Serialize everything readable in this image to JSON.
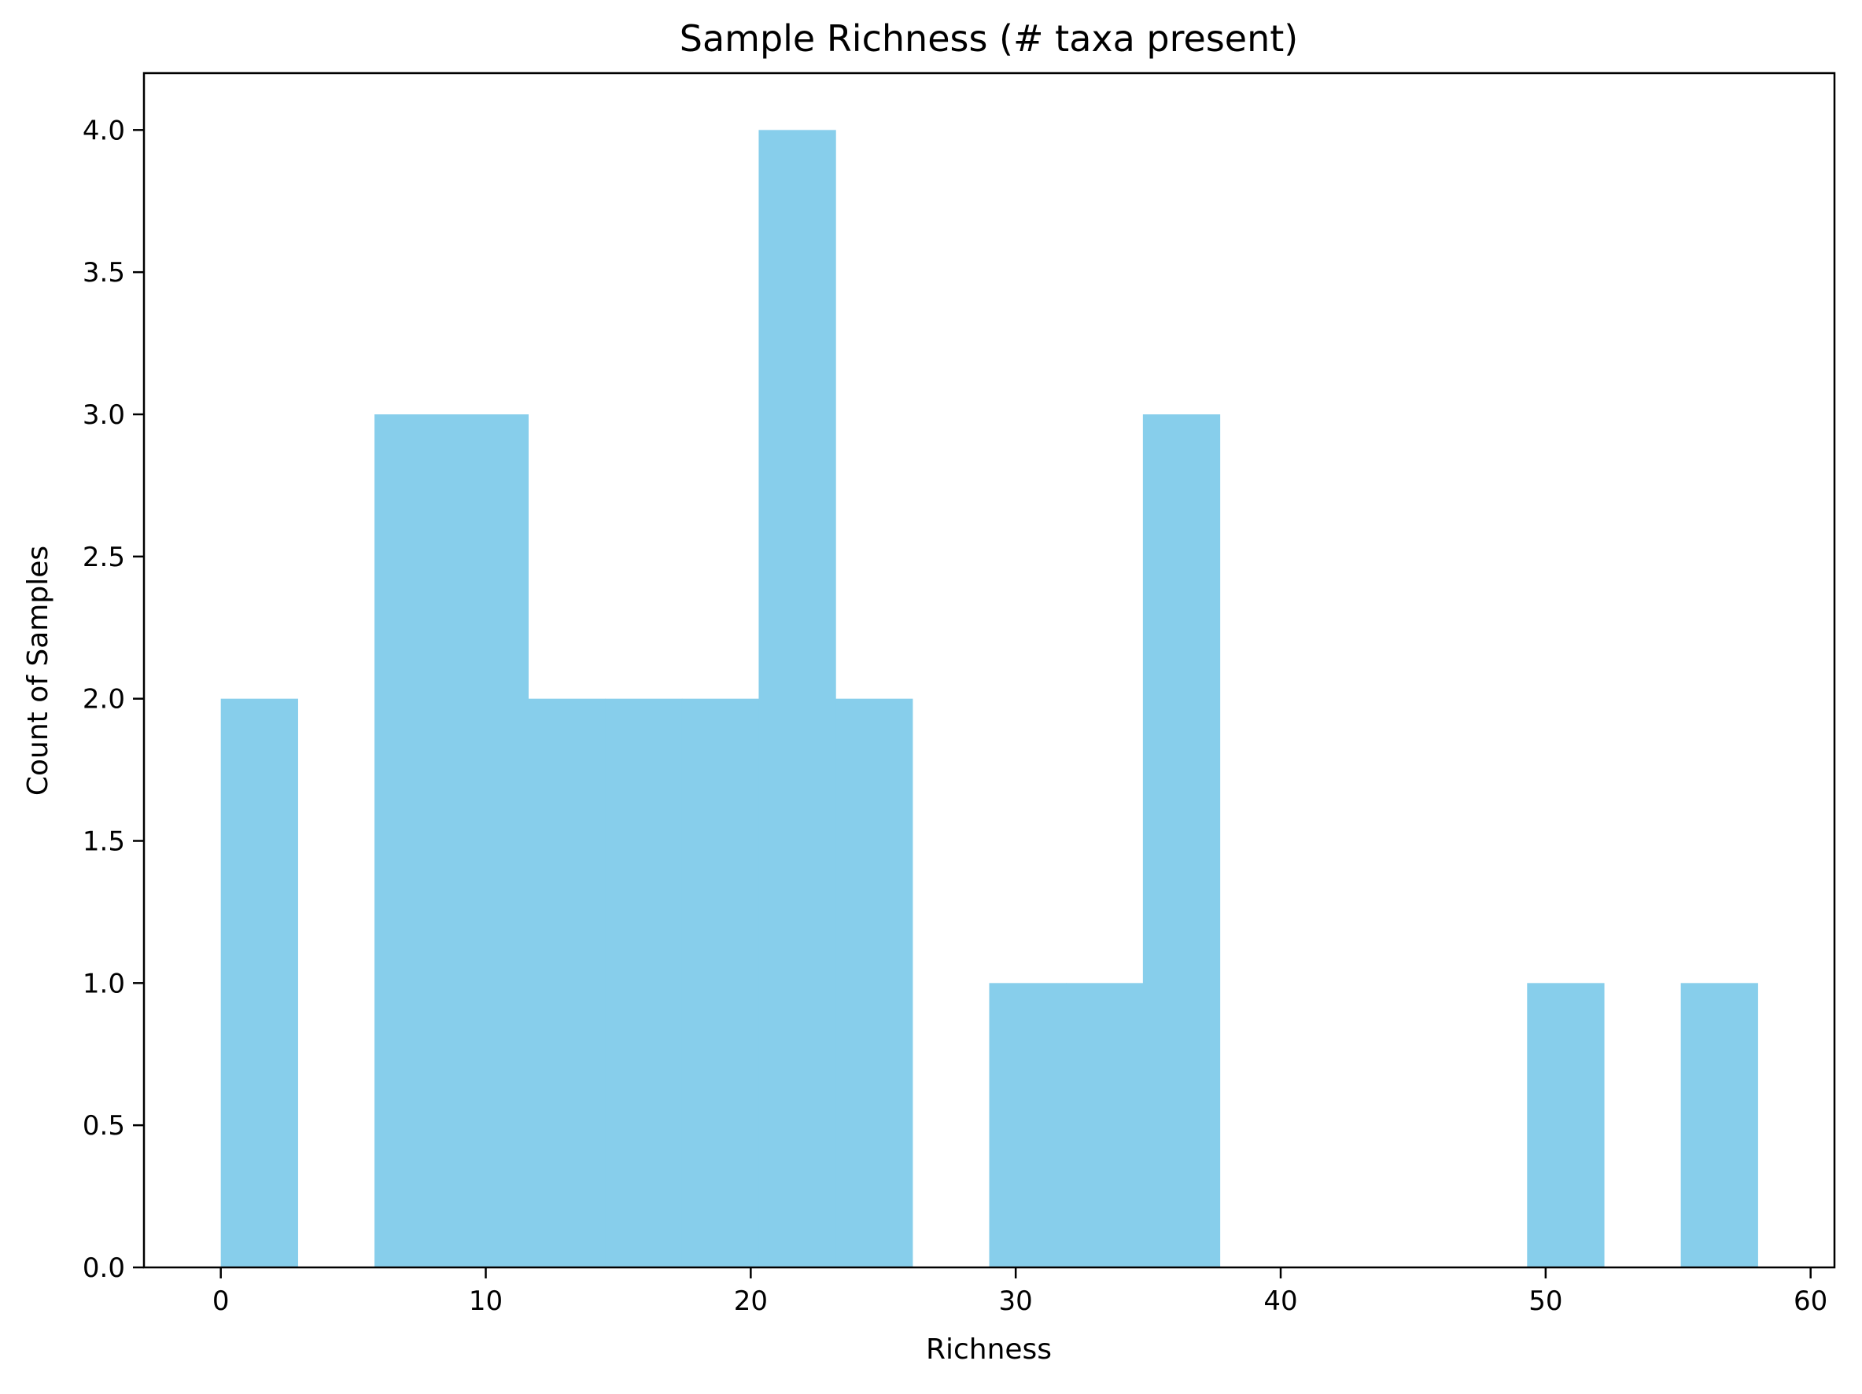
{
  "chart_data": {
    "type": "bar",
    "title": "Sample Richness (# taxa present)",
    "xlabel": "Richness",
    "ylabel": "Count of Samples",
    "xlim": [
      -2.9,
      60.9
    ],
    "ylim": [
      0,
      4.2
    ],
    "x_ticks": [
      "0",
      "10",
      "20",
      "30",
      "40",
      "50",
      "60"
    ],
    "y_ticks": [
      "0.0",
      "0.5",
      "1.0",
      "1.5",
      "2.0",
      "2.5",
      "3.0",
      "3.5",
      "4.0"
    ],
    "bin_start": 0,
    "bin_width": 2.9,
    "values": [
      2,
      0,
      3,
      3,
      2,
      2,
      2,
      4,
      2,
      0,
      1,
      1,
      3,
      0,
      0,
      0,
      0,
      1,
      0,
      1
    ],
    "bar_color": "#87CEEB",
    "grid": false,
    "legend": "none"
  }
}
